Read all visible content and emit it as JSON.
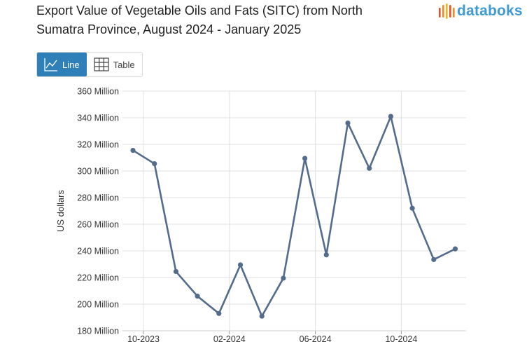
{
  "header": {
    "title_line1": "Export Value of Vegetable Oils and Fats (SITC) from North",
    "title_line2": "Sumatra Province, August 2024 - January 2025",
    "logo_text": "databoks",
    "logo_color": "#3f9bd0",
    "logo_mark_colors": [
      "#e8502a",
      "#f08a24",
      "#f5b21b",
      "#e8502a",
      "#f08a24"
    ]
  },
  "view_toggle": {
    "line_label": "Line",
    "table_label": "Table",
    "active": "line",
    "active_color": "#2f7fb9"
  },
  "chart_data": {
    "type": "line",
    "title": "",
    "ylabel": "US dollars",
    "xlabel": "",
    "ylim": [
      180,
      360
    ],
    "y_ticks": [
      180,
      200,
      220,
      240,
      260,
      280,
      300,
      320,
      340,
      360
    ],
    "y_tick_labels": [
      "180 Million",
      "200 Million",
      "220 Million",
      "240 Million",
      "260 Million",
      "280 Million",
      "300 Million",
      "320 Million",
      "340 Million",
      "360 Million"
    ],
    "x_tick_labels": [
      "10-2023",
      "02-2024",
      "06-2024",
      "10-2024"
    ],
    "x": [
      "10-2023",
      "11-2023",
      "12-2023",
      "01-2024",
      "02-2024",
      "03-2024",
      "04-2024",
      "05-2024",
      "06-2024",
      "07-2024",
      "08-2024",
      "09-2024",
      "10-2024",
      "11-2024",
      "12-2024",
      "01-2025"
    ],
    "series": [
      {
        "values": [
          315.5,
          305.5,
          224.5,
          206,
          193,
          229.5,
          191,
          219.5,
          309.5,
          237,
          336,
          302,
          341,
          272,
          233.5,
          241.5
        ],
        "color": "#546c8c"
      }
    ],
    "grid": true,
    "legend": "none"
  }
}
